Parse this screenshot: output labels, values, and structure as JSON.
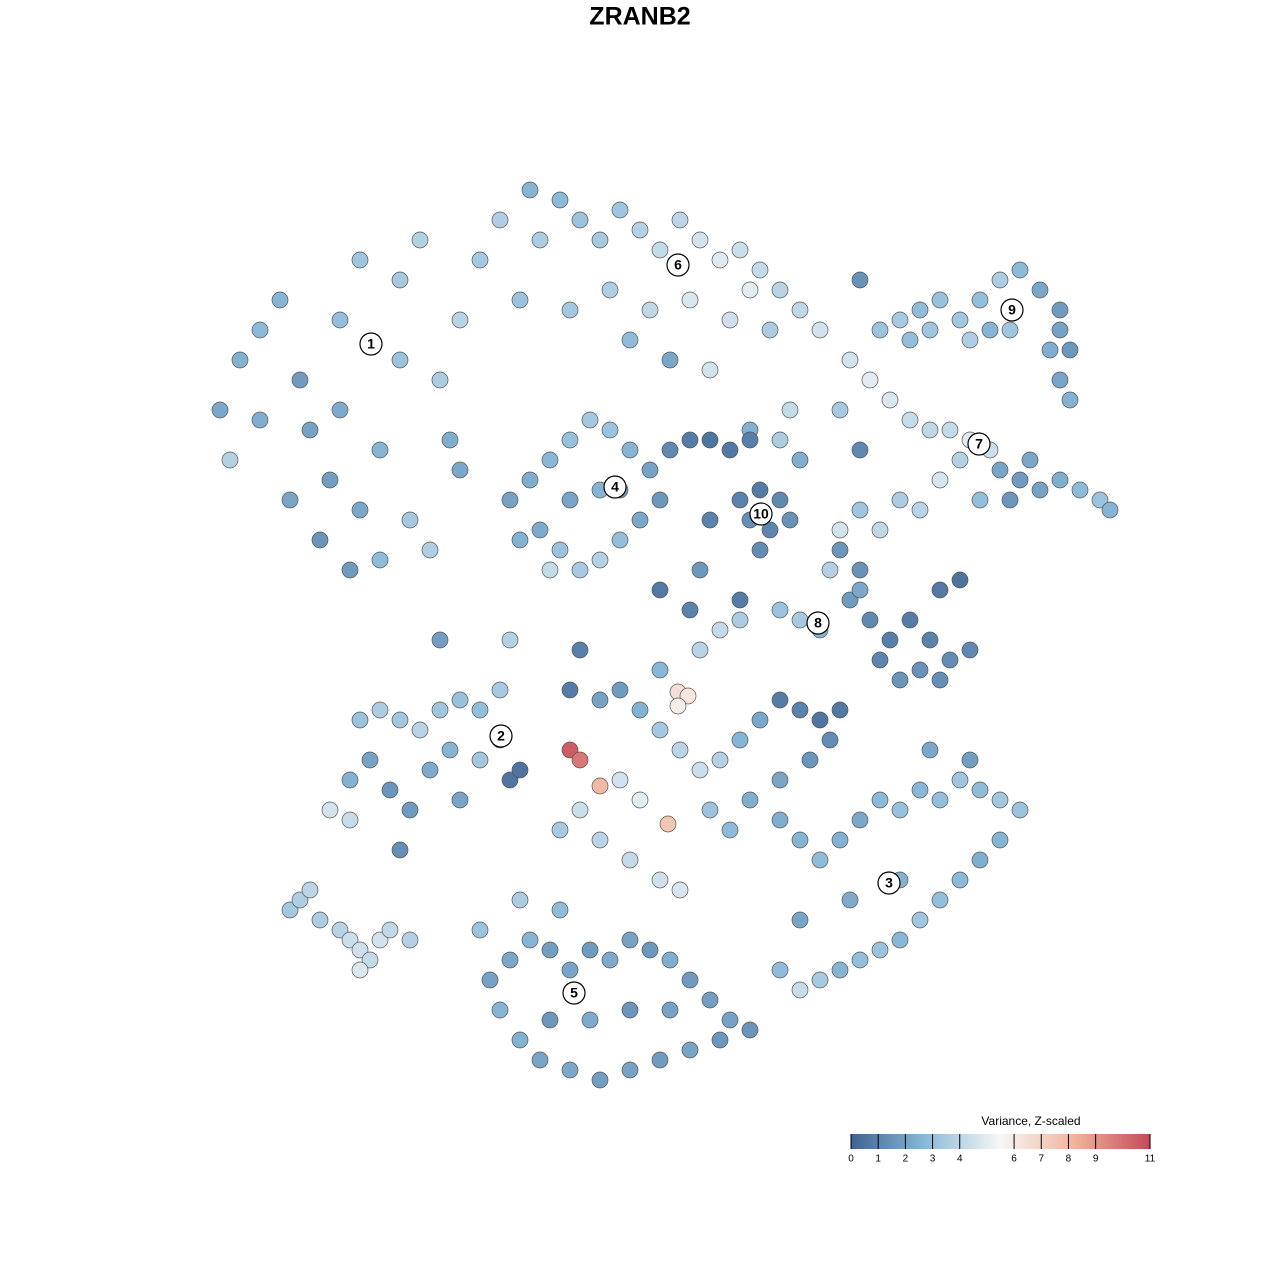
{
  "chart_data": {
    "type": "scatter",
    "title": "ZRANB2",
    "xlim": [
      20,
      113
    ],
    "ylim": [
      19,
      110
    ],
    "clim": [
      0,
      11
    ],
    "colors": [
      "#3f6392",
      "#8ab9d8",
      "#f7f7f7",
      "#f1b39a",
      "#c4495a"
    ],
    "colorbar_title": "Variance, Z-scaled",
    "cticks": [
      0,
      1,
      2,
      3,
      4,
      6,
      7,
      8,
      9,
      11
    ],
    "series": [
      {
        "x": [
          22,
          24,
          26,
          23,
          28,
          30,
          31,
          33,
          32,
          35,
          36,
          38,
          34,
          36,
          40,
          42,
          40,
          44,
          46,
          48,
          50,
          38,
          41,
          29,
          45,
          52,
          54,
          26,
          43,
          34
        ],
        "y": [
          87,
          92,
          95,
          82,
          98,
          90,
          85,
          80,
          74,
          71,
          77,
          83,
          96,
          102,
          100,
          104,
          92,
          90,
          96,
          102,
          106,
          72,
          76,
          78,
          84,
          98,
          104,
          86,
          73,
          87
        ],
        "values": [
          2.2,
          2.5,
          2.8,
          3.8,
          2.6,
          1.8,
          2,
          1.9,
          1.6,
          1.8,
          2.2,
          2.6,
          3,
          3.3,
          3.5,
          3.8,
          3.2,
          3.6,
          3.9,
          3.4,
          3.7,
          2.9,
          3.4,
          2.1,
          2.4,
          3.2,
          3.6,
          2.4,
          3.7,
          2.3
        ]
      },
      {
        "x": [
          56,
          58,
          60,
          62,
          64,
          66,
          68,
          70,
          72,
          74,
          76,
          78,
          80,
          82,
          61,
          65,
          69,
          73,
          57,
          63,
          67,
          71,
          77,
          75,
          53
        ],
        "y": [
          108,
          106,
          104,
          107,
          105,
          103,
          106,
          104,
          102,
          103,
          101,
          99,
          97,
          95,
          99,
          97,
          98,
          96,
          97,
          94,
          92,
          91,
          95,
          99,
          109
        ],
        "values": [
          2.8,
          3.2,
          3.5,
          3.3,
          3.8,
          4.2,
          4,
          4.6,
          4.9,
          4.4,
          4.2,
          3.9,
          4.1,
          4.6,
          3.7,
          4.1,
          4.8,
          4.5,
          3.4,
          2.9,
          2.2,
          4.6,
          3.6,
          5,
          2.6
        ]
      },
      {
        "x": [
          85,
          87,
          89,
          91,
          84,
          93,
          86,
          75,
          79,
          95,
          97,
          99,
          96,
          100,
          102,
          104,
          106,
          108,
          110,
          103,
          101,
          94,
          92,
          90,
          88,
          86,
          84,
          98,
          111
        ],
        "y": [
          92,
          90,
          88,
          86,
          87,
          85,
          83,
          85,
          87,
          85,
          84,
          83,
          82,
          81,
          80,
          79,
          80,
          79,
          78,
          82,
          78,
          80,
          77,
          78,
          75,
          77,
          75,
          78,
          77
        ],
        "values": [
          4.6,
          5,
          4.8,
          4.3,
          3.5,
          4.1,
          1.2,
          2.5,
          4.2,
          4.2,
          4.9,
          4.4,
          3.8,
          2.1,
          1.8,
          2,
          2.4,
          2.8,
          3.2,
          2.2,
          1.6,
          4.7,
          3.9,
          3.6,
          4.1,
          3.3,
          4.6,
          3,
          2.6
        ]
      },
      {
        "x": [
          88,
          90,
          92,
          94,
          96,
          98,
          100,
          102,
          104,
          106,
          106,
          107,
          105,
          101,
          99,
          97,
          93,
          91,
          106,
          107
        ],
        "y": [
          95,
          96,
          97,
          98,
          96,
          98,
          100,
          101,
          99,
          97,
          95,
          93,
          93,
          95,
          95,
          94,
          95,
          94,
          90,
          88
        ],
        "values": [
          3.2,
          3.5,
          2.9,
          3.1,
          3.4,
          3,
          3.6,
          2.8,
          2.2,
          1.8,
          2,
          1.7,
          2.4,
          3.3,
          2.6,
          3.7,
          3.3,
          3,
          2.1,
          2.5
        ]
      },
      {
        "x": [
          51,
          53,
          55,
          57,
          59,
          61,
          63,
          65,
          66,
          64,
          62,
          60,
          58,
          56,
          54,
          52,
          57,
          60,
          62,
          55,
          67,
          69,
          71
        ],
        "y": [
          78,
          80,
          82,
          84,
          86,
          85,
          83,
          81,
          78,
          76,
          74,
          72,
          71,
          73,
          75,
          74,
          78,
          79,
          79,
          71,
          83,
          84,
          84
        ],
        "values": [
          2,
          2.4,
          2.7,
          3.1,
          3.4,
          3.2,
          2.6,
          2,
          1.7,
          2.2,
          3,
          3.8,
          3.5,
          3.2,
          2.3,
          2.5,
          2.1,
          2.6,
          1.8,
          4.2,
          1.2,
          0.8,
          0.6
        ]
      },
      {
        "x": [
          74,
          76,
          78,
          75,
          77,
          76,
          79,
          73,
          75,
          71,
          80,
          78
        ],
        "y": [
          78,
          79,
          78,
          76,
          75,
          73,
          76,
          83,
          84,
          76,
          82,
          84
        ],
        "values": [
          1,
          0.8,
          1.2,
          1.4,
          1.1,
          1.3,
          1.5,
          0.7,
          0.9,
          1,
          2.4,
          3.6
        ]
      },
      {
        "x": [
          84,
          86,
          85,
          87,
          89,
          91,
          93,
          95,
          97,
          94,
          92,
          90,
          96,
          94,
          78,
          80,
          82,
          88,
          83,
          86
        ],
        "y": [
          73,
          71,
          68,
          66,
          64,
          66,
          64,
          62,
          63,
          60,
          61,
          60,
          70,
          69,
          67,
          66,
          65,
          62,
          71,
          69
        ],
        "values": [
          1.6,
          1.5,
          1.8,
          1.2,
          0.9,
          0.8,
          1,
          1.3,
          1.2,
          1.4,
          1.5,
          1.6,
          0.5,
          0.7,
          3.2,
          3.5,
          2.6,
          1.1,
          3.8,
          2.2
        ]
      },
      {
        "x": [
          36,
          38,
          40,
          42,
          44,
          46,
          48,
          50,
          37,
          39,
          41,
          40,
          35,
          33,
          35,
          43,
          45,
          51,
          52,
          46,
          50,
          48
        ],
        "y": [
          56,
          57,
          56,
          55,
          57,
          58,
          57,
          59,
          52,
          49,
          47,
          43,
          50,
          47,
          46,
          51,
          53,
          50,
          51,
          48,
          54,
          52
        ],
        "values": [
          3.2,
          3.6,
          3.4,
          3.9,
          3.3,
          3.1,
          3,
          3.5,
          2,
          1.6,
          1.8,
          1.4,
          2.5,
          4.6,
          4.3,
          2.3,
          2.6,
          0.6,
          0.5,
          2.1,
          1.9,
          3.4
        ]
      },
      {
        "x": [
          60,
          62,
          64,
          66,
          68,
          70,
          72,
          74,
          76,
          78,
          80,
          82,
          84,
          70,
          72,
          74,
          66,
          62,
          64,
          58,
          56,
          60,
          63,
          66,
          68,
          71,
          73,
          75,
          78,
          81,
          83,
          69,
          66,
          58,
          57,
          57,
          58,
          60,
          66.8,
          67.8,
          68.8,
          67.8
        ],
        "y": [
          58,
          59,
          57,
          55,
          53,
          51,
          52,
          54,
          56,
          58,
          57,
          56,
          57,
          63,
          65,
          66,
          61,
          50,
          48,
          47,
          45,
          44,
          42,
          40,
          39,
          47,
          45,
          48,
          50,
          52,
          54,
          67,
          69,
          63,
          59,
          53,
          52,
          49.4,
          45.6,
          58.8,
          58.4,
          57.4
        ],
        "values": [
          2,
          1.8,
          2.5,
          3.4,
          4,
          4.4,
          3.8,
          2.6,
          2.2,
          0.8,
          1,
          0.6,
          0.7,
          3.9,
          4.2,
          3.6,
          2.7,
          4.6,
          5,
          4.4,
          3.5,
          3.9,
          4.2,
          4.5,
          4.7,
          3.2,
          2.8,
          2.4,
          2.1,
          1.6,
          1.3,
          1,
          0.7,
          0.9,
          0.8,
          10.5,
          9.8,
          8,
          7.5,
          6.5,
          6.2,
          5.9
        ]
      },
      {
        "x": [
          78,
          80,
          82,
          84,
          86,
          88,
          90,
          92,
          94,
          96,
          98,
          100,
          102,
          100,
          98,
          96,
          94,
          92,
          90,
          88,
          86,
          84,
          82,
          80,
          78,
          80,
          85,
          90,
          97,
          93
        ],
        "y": [
          46,
          44,
          42,
          44,
          46,
          48,
          47,
          49,
          48,
          50,
          49,
          48,
          47,
          44,
          42,
          40,
          38,
          36,
          34,
          33,
          32,
          31,
          30,
          29,
          31,
          36,
          38,
          40,
          52,
          53
        ],
        "values": [
          2.4,
          2.6,
          2.9,
          2.5,
          2.2,
          2.8,
          3.1,
          2.7,
          3,
          3.3,
          2.9,
          3.4,
          3.2,
          2.6,
          2.4,
          2.8,
          3,
          3.3,
          2.7,
          3.2,
          3,
          2.6,
          3.5,
          4.3,
          2.9,
          2.1,
          2.3,
          2.5,
          1.9,
          2.2
        ]
      },
      {
        "x": [
          49,
          51,
          53,
          55,
          57,
          59,
          61,
          63,
          65,
          67,
          69,
          71,
          73,
          75,
          72,
          69,
          66,
          63,
          60,
          57,
          54,
          52,
          55,
          59,
          63,
          67,
          50,
          48,
          52,
          56
        ],
        "y": [
          30,
          32,
          34,
          33,
          31,
          33,
          32,
          34,
          33,
          32,
          30,
          28,
          26,
          25,
          24,
          23,
          22,
          21,
          20,
          21,
          22,
          24,
          26,
          26,
          27,
          27,
          27,
          35,
          38,
          37
        ],
        "values": [
          2,
          2.2,
          2.6,
          1.9,
          2.1,
          1.8,
          2.3,
          2,
          1.7,
          2.4,
          1.8,
          1.9,
          2,
          1.6,
          1.7,
          2.1,
          1.8,
          2,
          1.9,
          2.2,
          2.1,
          2.5,
          1.7,
          2.3,
          1.6,
          2,
          2.6,
          3.2,
          3.6,
          2.9
        ]
      },
      {
        "x": [
          29,
          30,
          31,
          32,
          34,
          35,
          36,
          37,
          38,
          36,
          39,
          41
        ],
        "y": [
          37,
          38,
          39,
          36,
          35,
          34,
          33,
          32,
          34,
          31,
          35,
          34
        ],
        "values": [
          3.4,
          3.7,
          4,
          3.6,
          3.9,
          4.4,
          4.5,
          4.2,
          4.6,
          4.8,
          4.1,
          3.8
        ]
      },
      {
        "x": [
          44,
          51,
          46,
          74,
          70,
          86
        ],
        "y": [
          64,
          64,
          81,
          68,
          71,
          100
        ],
        "values": [
          1.9,
          3.8,
          2.2,
          0.8,
          1.7,
          1.5
        ]
      }
    ],
    "annotations": [
      {
        "text": "1",
        "x": 37.1,
        "y": 93.6
      },
      {
        "text": "2",
        "x": 50.1,
        "y": 54.4
      },
      {
        "text": "3",
        "x": 88.9,
        "y": 39.7
      },
      {
        "text": "4",
        "x": 61.5,
        "y": 79.3
      },
      {
        "text": "5",
        "x": 57.4,
        "y": 28.7
      },
      {
        "text": "6",
        "x": 67.8,
        "y": 101.5
      },
      {
        "text": "7",
        "x": 97.9,
        "y": 83.6
      },
      {
        "text": "8",
        "x": 81.8,
        "y": 65.7
      },
      {
        "text": "9",
        "x": 101.2,
        "y": 97
      },
      {
        "text": "10",
        "x": 76.1,
        "y": 76.6
      }
    ]
  }
}
